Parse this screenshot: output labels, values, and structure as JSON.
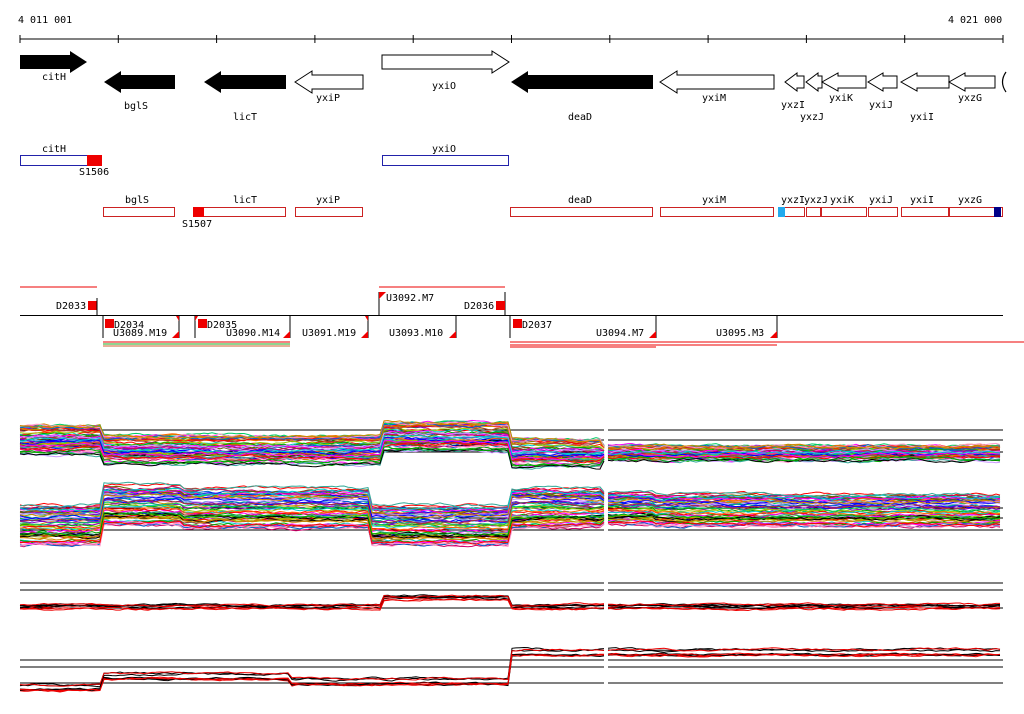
{
  "ruler": {
    "start_label": "4 011 001",
    "end_label": "4 021 000"
  },
  "genes": [
    {
      "name": "citH",
      "strand": "+",
      "style": "filled"
    },
    {
      "name": "bglS",
      "strand": "-",
      "style": "filled"
    },
    {
      "name": "licT",
      "strand": "-",
      "style": "filled"
    },
    {
      "name": "yxiP",
      "strand": "-",
      "style": "outline"
    },
    {
      "name": "yxiO",
      "strand": "+",
      "style": "outline"
    },
    {
      "name": "deaD",
      "strand": "-",
      "style": "filled"
    },
    {
      "name": "yxiM",
      "strand": "-",
      "style": "outline"
    },
    {
      "name": "yxzI",
      "strand": "-",
      "style": "outline"
    },
    {
      "name": "yxzJ",
      "strand": "-",
      "style": "outline"
    },
    {
      "name": "yxiK",
      "strand": "-",
      "style": "outline"
    },
    {
      "name": "yxiJ",
      "strand": "-",
      "style": "outline"
    },
    {
      "name": "yxiI",
      "strand": "-",
      "style": "outline"
    },
    {
      "name": "yxzG",
      "strand": "-",
      "style": "outline"
    }
  ],
  "forward_boxes": [
    {
      "name": "citH",
      "color": "#2222aa"
    },
    {
      "name": "yxiO",
      "color": "#2222aa"
    }
  ],
  "forward_sites": [
    "S1506"
  ],
  "reverse_boxes": [
    {
      "name": "bglS"
    },
    {
      "name": "licT"
    },
    {
      "name": "yxiP"
    },
    {
      "name": "deaD"
    },
    {
      "name": "yxiM"
    },
    {
      "name": "yxzI"
    },
    {
      "name": "yxzJ"
    },
    {
      "name": "yxiK"
    },
    {
      "name": "yxiJ"
    },
    {
      "name": "yxiI"
    },
    {
      "name": "yxzG"
    }
  ],
  "reverse_sites": [
    "S1507"
  ],
  "upper_features": [
    "U3092.M7"
  ],
  "lower_features": [
    "U3089.M19",
    "U3090.M14",
    "U3091.M19",
    "U3093.M10",
    "U3094.M7",
    "U3095.M3"
  ],
  "d_markers": [
    "D2033",
    "D2034",
    "D2035",
    "D2036",
    "D2037"
  ],
  "colors": {
    "reverse_box": "#cc2222",
    "forward_box": "#2222aa",
    "marker": "#ee0000",
    "accent_cyan": "#22aaee",
    "accent_navy": "#000088"
  }
}
